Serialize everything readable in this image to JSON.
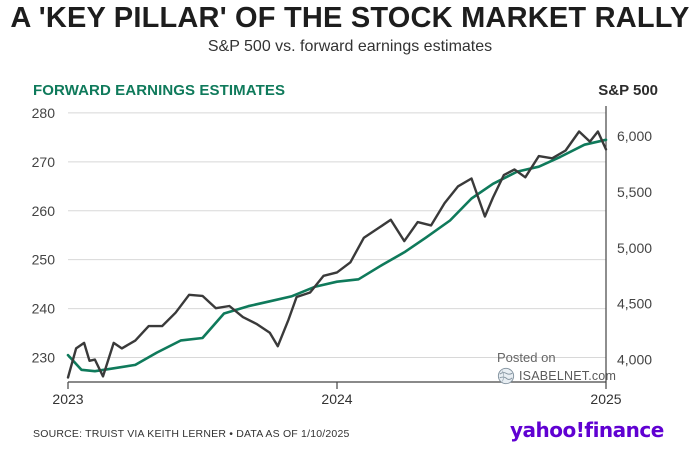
{
  "header": {
    "title": "A 'KEY PILLAR' OF THE STOCK MARKET RALLY",
    "subtitle": "S&P 500 vs. forward earnings estimates"
  },
  "colors": {
    "earnings_line": "#0f7a5b",
    "sp500_line": "#3a3a3a",
    "gridline": "#d8d8d8",
    "logo": "#6001d2"
  },
  "watermark": {
    "posted_label": "Posted on",
    "site_label": "ISABELNET.com",
    "icon": "globe-icon"
  },
  "footer": {
    "source": "SOURCE: TRUIST VIA KEITH LERNER • DATA AS OF 1/10/2025",
    "logo_text": "yahoo!finance"
  },
  "chart_data": {
    "type": "line",
    "title": "A 'KEY PILLAR' OF THE STOCK MARKET RALLY",
    "subtitle": "S&P 500 vs. forward earnings estimates",
    "xlabel": "",
    "x_ticks": [
      "2023",
      "2024",
      "2025"
    ],
    "x_range": [
      2023.0,
      2025.0
    ],
    "left_axis": {
      "label": "FORWARD EARNINGS ESTIMATES",
      "range": [
        225,
        281
      ],
      "ticks": [
        230,
        240,
        250,
        260,
        270,
        280
      ],
      "tick_labels": [
        "230",
        "240",
        "250",
        "260",
        "270",
        "280"
      ]
    },
    "right_axis": {
      "label": "S&P 500",
      "range": [
        3800,
        6250
      ],
      "ticks": [
        4000,
        4500,
        5000,
        5500,
        6000
      ],
      "tick_labels": [
        "4,000",
        "4,500",
        "5,000",
        "5,500",
        "6,000"
      ]
    },
    "series": [
      {
        "name": "Forward earnings estimates",
        "axis": "left",
        "x": [
          2023.0,
          2023.05,
          2023.1,
          2023.17,
          2023.25,
          2023.33,
          2023.42,
          2023.5,
          2023.58,
          2023.67,
          2023.75,
          2023.83,
          2023.92,
          2024.0,
          2024.08,
          2024.17,
          2024.25,
          2024.33,
          2024.42,
          2024.5,
          2024.58,
          2024.67,
          2024.75,
          2024.83,
          2024.92,
          2025.0
        ],
        "values": [
          230.5,
          227.5,
          227.2,
          227.8,
          228.5,
          231.0,
          233.5,
          234.0,
          239.0,
          240.5,
          241.5,
          242.5,
          244.5,
          245.5,
          246.0,
          249.0,
          251.5,
          254.5,
          258.0,
          262.5,
          265.5,
          268.0,
          269.0,
          271.0,
          273.5,
          274.5
        ]
      },
      {
        "name": "S&P 500",
        "axis": "right",
        "x": [
          2023.0,
          2023.03,
          2023.06,
          2023.08,
          2023.1,
          2023.13,
          2023.17,
          2023.2,
          2023.25,
          2023.3,
          2023.35,
          2023.4,
          2023.45,
          2023.5,
          2023.55,
          2023.6,
          2023.65,
          2023.7,
          2023.75,
          2023.78,
          2023.82,
          2023.85,
          2023.9,
          2023.95,
          2024.0,
          2024.05,
          2024.1,
          2024.15,
          2024.2,
          2024.25,
          2024.3,
          2024.35,
          2024.4,
          2024.45,
          2024.5,
          2024.55,
          2024.58,
          2024.62,
          2024.66,
          2024.7,
          2024.75,
          2024.8,
          2024.85,
          2024.9,
          2024.94,
          2024.97,
          2025.0
        ],
        "values": [
          3840,
          4100,
          4150,
          3990,
          4000,
          3850,
          4150,
          4100,
          4170,
          4300,
          4300,
          4420,
          4580,
          4570,
          4460,
          4480,
          4380,
          4320,
          4240,
          4120,
          4360,
          4560,
          4600,
          4750,
          4780,
          4870,
          5090,
          5170,
          5250,
          5060,
          5230,
          5200,
          5400,
          5550,
          5620,
          5280,
          5450,
          5650,
          5700,
          5630,
          5820,
          5800,
          5870,
          6040,
          5950,
          6040,
          5880
        ]
      }
    ],
    "legend": "none",
    "grid": true
  }
}
